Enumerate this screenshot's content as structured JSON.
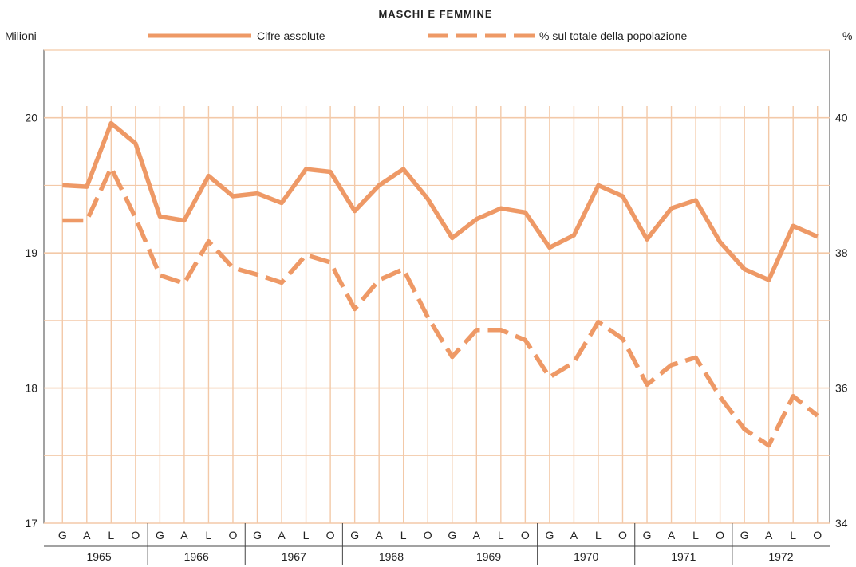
{
  "chart_data": {
    "type": "line",
    "title": "MASCHI E FEMMINE",
    "ylabel_left": "Milioni",
    "ylabel_right": "%",
    "ylim_left": [
      17,
      20.5
    ],
    "ylim_right": [
      34,
      41
    ],
    "y_ticks_left": [
      "17",
      "18",
      "19",
      "20"
    ],
    "y_ticks_right": [
      "34",
      "36",
      "38",
      "40"
    ],
    "quarter_labels": [
      "G",
      "A",
      "L",
      "O"
    ],
    "years": [
      "1965",
      "1966",
      "1967",
      "1968",
      "1969",
      "1970",
      "1971",
      "1972"
    ],
    "grid": true,
    "legend_position": "top",
    "series": [
      {
        "name": "Cifre assolute",
        "axis": "left",
        "style": "solid",
        "color": "#ee9966",
        "values": [
          19.5,
          19.49,
          19.96,
          19.81,
          19.27,
          19.24,
          19.57,
          19.42,
          19.44,
          19.37,
          19.62,
          19.6,
          19.31,
          19.5,
          19.62,
          19.4,
          19.11,
          19.25,
          19.33,
          19.3,
          19.04,
          19.13,
          19.5,
          19.42,
          19.1,
          19.33,
          19.39,
          19.08,
          18.88,
          18.8,
          19.2,
          19.12
        ]
      },
      {
        "name": "% sul totale della popolazione",
        "axis": "right",
        "style": "dashed",
        "color": "#ee9966",
        "values": [
          38.48,
          38.48,
          39.26,
          38.52,
          37.67,
          37.55,
          38.17,
          37.78,
          37.68,
          37.56,
          37.97,
          37.86,
          37.17,
          37.6,
          37.76,
          37.05,
          36.46,
          36.86,
          36.86,
          36.71,
          36.16,
          36.38,
          36.98,
          36.73,
          36.05,
          36.34,
          36.45,
          35.87,
          35.39,
          35.15,
          35.88,
          35.59
        ]
      }
    ]
  },
  "colors": {
    "series_line": "#ee9966",
    "grid_line": "#f3c9a8",
    "plot_background": "#ffffff"
  }
}
